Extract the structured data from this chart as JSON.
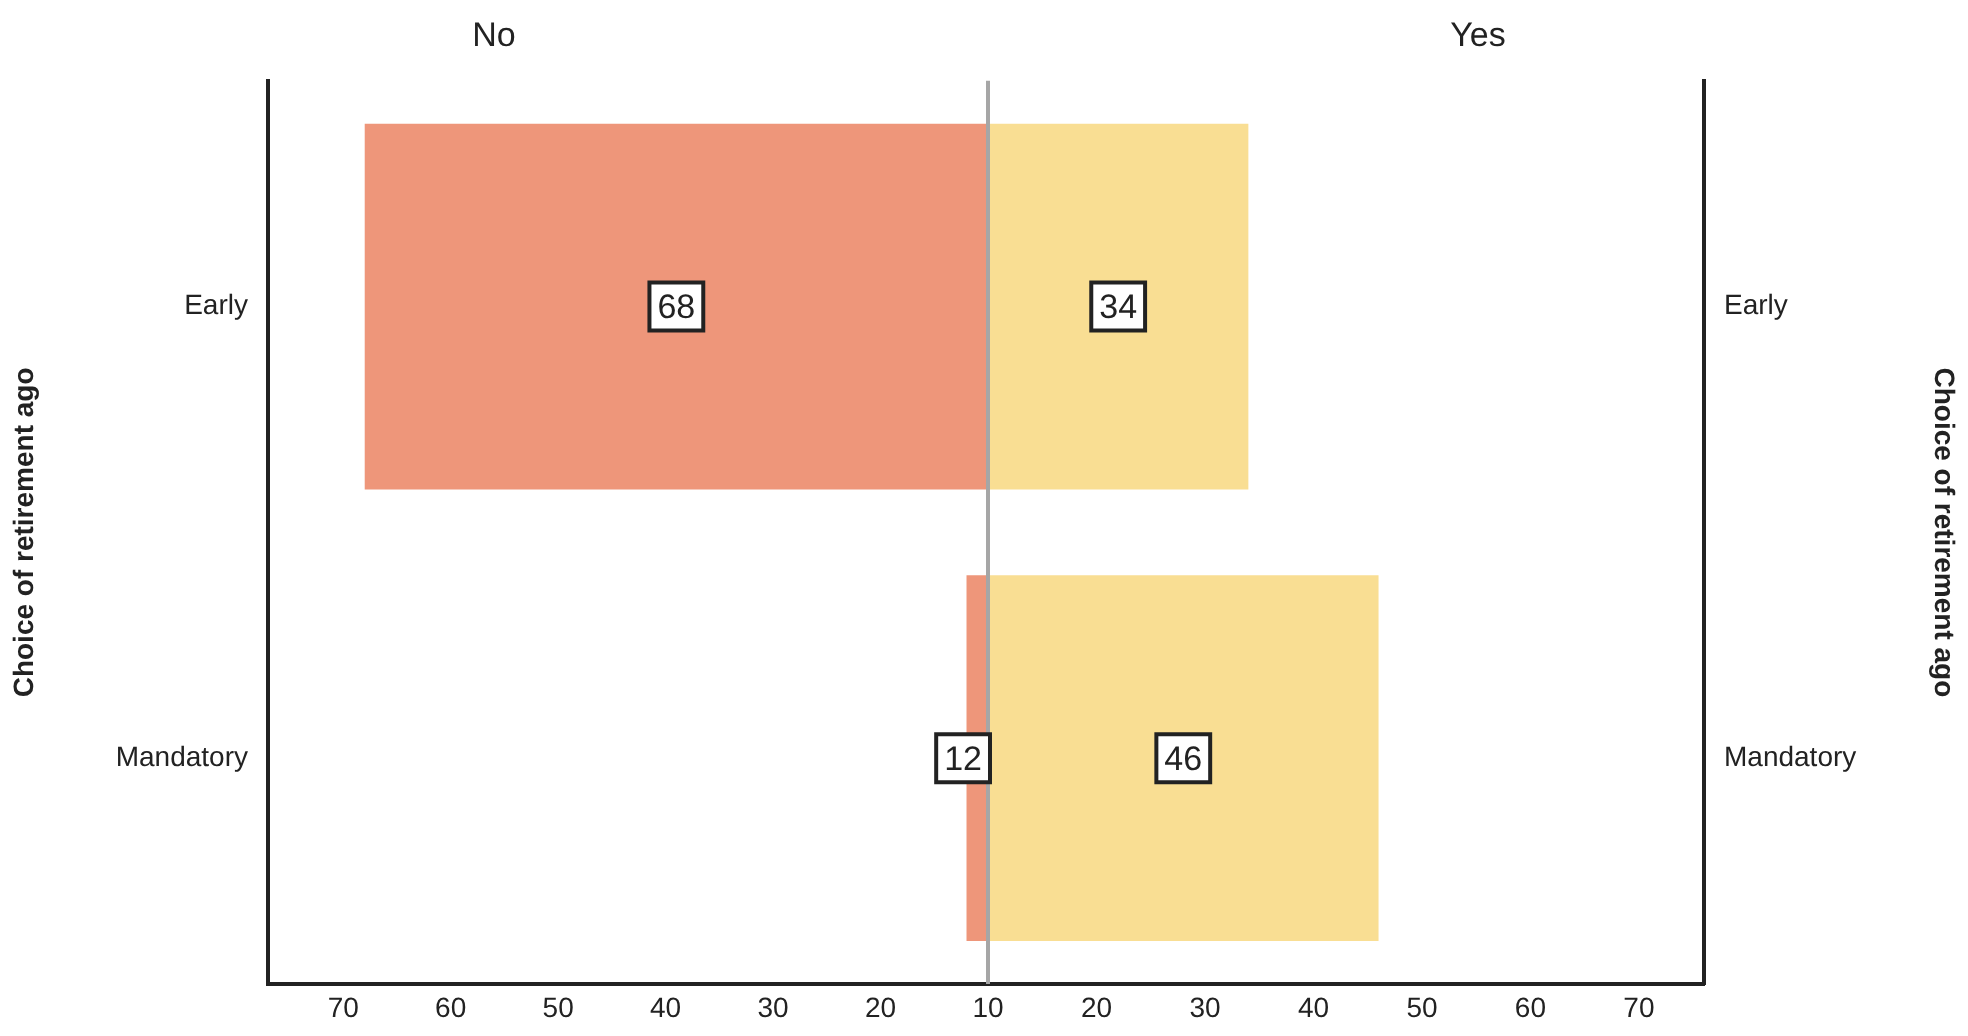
{
  "chart_data": [
    {
      "type": "bar",
      "orientation": "horizontal",
      "title": "No",
      "ylabel": "Choice of retirement ago",
      "categories": [
        "Early",
        "Mandatory"
      ],
      "values": [
        68,
        12
      ],
      "color": "#ee967a",
      "xlim": [
        77,
        10
      ],
      "xticks": [
        70,
        60,
        50,
        40,
        30,
        20,
        10
      ],
      "data_labels": true,
      "grid": false,
      "legend": false,
      "ref_lines": [
        {
          "axis": "x",
          "value": 10,
          "color": "#a6a6a6"
        }
      ]
    },
    {
      "type": "bar",
      "orientation": "horizontal",
      "title": "Yes",
      "ylabel": "Choice of retirement ago",
      "categories": [
        "Early",
        "Mandatory"
      ],
      "values": [
        34,
        46
      ],
      "color": "#f9de93",
      "xlim": [
        10,
        76
      ],
      "xticks": [
        20,
        30,
        40,
        50,
        60,
        70
      ],
      "data_labels": true,
      "grid": false,
      "legend": false
    }
  ]
}
